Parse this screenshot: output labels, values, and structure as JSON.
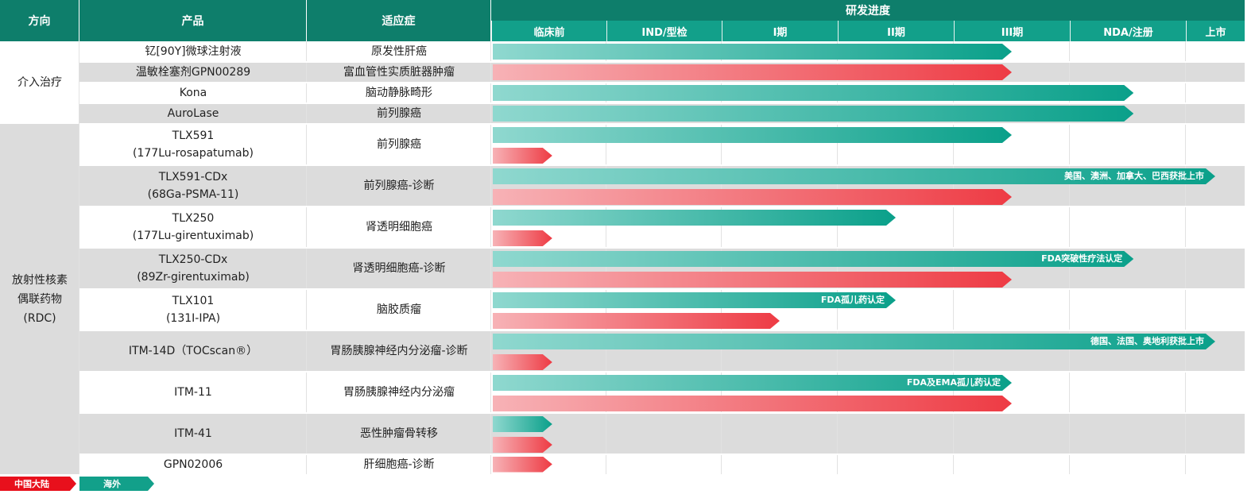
{
  "header": {
    "col_direction": "方向",
    "col_product": "产品",
    "col_indication": "适应症",
    "col_progress": "研发进度",
    "stages": [
      "临床前",
      "IND/型检",
      "I期",
      "II期",
      "III期",
      "NDA/注册",
      "上市"
    ]
  },
  "groups": [
    {
      "label": "介入治疗"
    },
    {
      "label": "放射性核素\n偶联药物\n(RDC)"
    }
  ],
  "rows": [
    {
      "product": "钇[90Y]微球注射液",
      "indication": "原发性肝癌",
      "bars": [
        {
          "region": "海外",
          "end_stage": 4.5,
          "note": ""
        }
      ]
    },
    {
      "product": "温敏栓塞剂GPN00289",
      "indication": "富血管性实质脏器肿瘤",
      "bars": [
        {
          "region": "中国大陆",
          "end_stage": 4.5,
          "note": ""
        }
      ]
    },
    {
      "product": "Kona",
      "indication": "脑动静脉畸形",
      "bars": [
        {
          "region": "海外",
          "end_stage": 5.55,
          "note": ""
        }
      ]
    },
    {
      "product": "AuroLase",
      "indication": "前列腺癌",
      "bars": [
        {
          "region": "海外",
          "end_stage": 5.55,
          "note": ""
        }
      ]
    },
    {
      "product": "TLX591\n(177Lu-rosapatumab)",
      "indication": "前列腺癌",
      "bars": [
        {
          "region": "海外",
          "end_stage": 4.5,
          "note": ""
        },
        {
          "region": "中国大陆",
          "end_stage": 0.53,
          "note": ""
        }
      ]
    },
    {
      "product": "TLX591-CDx\n(68Ga-PSMA-11)",
      "indication": "前列腺癌-诊断",
      "bars": [
        {
          "region": "海外",
          "end_stage": 6.5,
          "note": "美国、澳洲、加拿大、巴西获批上市"
        },
        {
          "region": "中国大陆",
          "end_stage": 4.5,
          "note": ""
        }
      ]
    },
    {
      "product": "TLX250\n(177Lu-girentuximab)",
      "indication": "肾透明细胞癌",
      "bars": [
        {
          "region": "海外",
          "end_stage": 3.5,
          "note": ""
        },
        {
          "region": "中国大陆",
          "end_stage": 0.53,
          "note": ""
        }
      ]
    },
    {
      "product": "TLX250-CDx\n(89Zr-girentuximab)",
      "indication": "肾透明细胞癌-诊断",
      "bars": [
        {
          "region": "海外",
          "end_stage": 5.55,
          "note": "FDA突破性疗法认定"
        },
        {
          "region": "中国大陆",
          "end_stage": 4.5,
          "note": ""
        }
      ]
    },
    {
      "product": "TLX101\n(131I-IPA)",
      "indication": "脑胶质瘤",
      "bars": [
        {
          "region": "海外",
          "end_stage": 3.5,
          "note": "FDA孤儿药认定"
        },
        {
          "region": "中国大陆",
          "end_stage": 2.5,
          "note": ""
        }
      ]
    },
    {
      "product": "ITM-14D（TOCscan®）",
      "indication": "胃肠胰腺神经内分泌瘤-诊断",
      "bars": [
        {
          "region": "海外",
          "end_stage": 6.5,
          "note": "德国、法国、奥地利获批上市"
        },
        {
          "region": "中国大陆",
          "end_stage": 0.53,
          "note": ""
        }
      ]
    },
    {
      "product": "ITM-11",
      "indication": "胃肠胰腺神经内分泌瘤",
      "bars": [
        {
          "region": "海外",
          "end_stage": 4.5,
          "note": "FDA及EMA孤儿药认定"
        },
        {
          "region": "中国大陆",
          "end_stage": 4.5,
          "note": ""
        }
      ]
    },
    {
      "product": "ITM-41",
      "indication": "恶性肿瘤骨转移",
      "bars": [
        {
          "region": "海外",
          "end_stage": 0.53,
          "note": ""
        },
        {
          "region": "中国大陆",
          "end_stage": 0.53,
          "note": ""
        }
      ]
    },
    {
      "product": "GPN02006",
      "indication": "肝细胞癌-诊断",
      "bars": [
        {
          "region": "中国大陆",
          "end_stage": 0.53,
          "note": ""
        }
      ]
    }
  ],
  "legend": {
    "china": "中国大陆",
    "overseas": "海外"
  },
  "colors": {
    "header_dark": "#0e7e6b",
    "header_light": "#12a08a",
    "overseas_start": "#8fd8cf",
    "overseas_end": "#0aa08a",
    "china_start": "#f7b2b6",
    "china_end": "#ee3b44",
    "row_alt": "#dcdcdc",
    "legend_china": "#e8101c",
    "legend_overseas": "#12a08a"
  }
}
